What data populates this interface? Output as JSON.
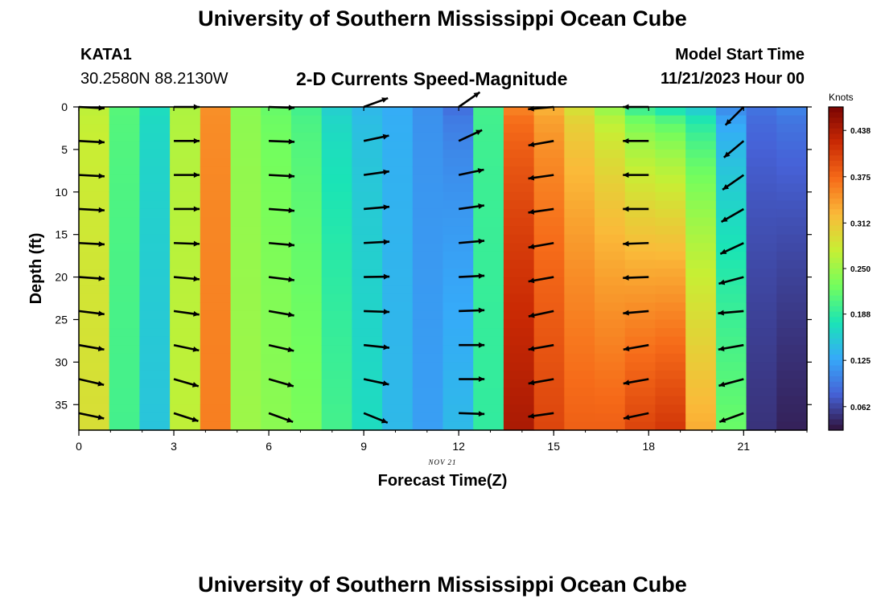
{
  "header": {
    "title": "University of Southern Mississippi Ocean Cube",
    "station": "KATA1",
    "coords": "30.2580N  88.2130W",
    "plot_title": "2-D Currents Speed-Magnitude",
    "model_label": "Model Start Time",
    "model_time": "11/21/2023 Hour 00"
  },
  "footer": {
    "title": "University of Southern Mississippi Ocean Cube"
  },
  "colors": {
    "scale": [
      "#30123b",
      "#4662d7",
      "#36aaf9",
      "#1ae4b6",
      "#72fe5e",
      "#c7ef34",
      "#faba39",
      "#f66b19",
      "#ca2a04",
      "#7a0403"
    ],
    "arrow": "#000000",
    "axis": "#000000"
  },
  "chart_data": {
    "type": "heatmap",
    "title": "2-D Currents Speed-Magnitude",
    "xlabel": "Forecast Time(Z)",
    "ylabel": "Depth (ft)",
    "x_sublabel": "NOV 21",
    "xlim": [
      0,
      23
    ],
    "ylim": [
      0,
      38
    ],
    "y_inverted": true,
    "x_ticks": [
      "0",
      "3",
      "6",
      "9",
      "12",
      "15",
      "18",
      "21"
    ],
    "y_ticks": [
      "0",
      "5",
      "10",
      "15",
      "20",
      "25",
      "30",
      "35"
    ],
    "hours": [
      0,
      1,
      2,
      3,
      4,
      5,
      6,
      7,
      8,
      9,
      10,
      11,
      12,
      13,
      14,
      15,
      16,
      17,
      18,
      19,
      20,
      21,
      22,
      23
    ],
    "surface_speed": [
      0.27,
      0.21,
      0.17,
      0.26,
      0.35,
      0.24,
      0.22,
      0.2,
      0.16,
      0.14,
      0.13,
      0.11,
      0.09,
      0.2,
      0.36,
      0.33,
      0.29,
      0.25,
      0.2,
      0.18,
      0.16,
      0.11,
      0.09,
      0.1
    ],
    "bottom_speed": [
      0.29,
      0.2,
      0.15,
      0.27,
      0.36,
      0.25,
      0.24,
      0.23,
      0.2,
      0.17,
      0.14,
      0.12,
      0.14,
      0.19,
      0.44,
      0.4,
      0.38,
      0.38,
      0.4,
      0.41,
      0.33,
      0.22,
      0.05,
      0.04
    ],
    "colorbar": {
      "label": "Knots",
      "ticks": [
        "0.438",
        "0.375",
        "0.312",
        "0.250",
        "0.188",
        "0.125",
        "0.062"
      ],
      "range": [
        0.03,
        0.47
      ]
    },
    "vectors": {
      "hours": [
        0,
        3,
        6,
        9,
        12,
        15,
        18,
        21
      ],
      "depths": [
        0,
        4,
        8,
        12,
        16,
        20,
        24,
        28,
        32,
        36
      ],
      "direction_deg": [
        [
          3,
          3,
          3,
          3,
          3,
          4,
          7,
          10,
          13,
          12
        ],
        [
          0,
          0,
          0,
          0,
          2,
          5,
          8,
          12,
          16,
          18
        ],
        [
          2,
          2,
          3,
          4,
          5,
          7,
          10,
          13,
          16,
          20
        ],
        [
          -20,
          -12,
          -8,
          -5,
          -3,
          -1,
          2,
          6,
          12,
          22
        ],
        [
          -35,
          -25,
          -12,
          -8,
          -5,
          -3,
          -2,
          0,
          0,
          2
        ],
        [
          175,
          170,
          172,
          172,
          170,
          170,
          168,
          170,
          170,
          172
        ],
        [
          180,
          180,
          180,
          180,
          178,
          178,
          175,
          170,
          170,
          168
        ],
        [
          135,
          140,
          145,
          150,
          155,
          165,
          175,
          170,
          165,
          160
        ]
      ],
      "arrow_len": 32
    }
  }
}
